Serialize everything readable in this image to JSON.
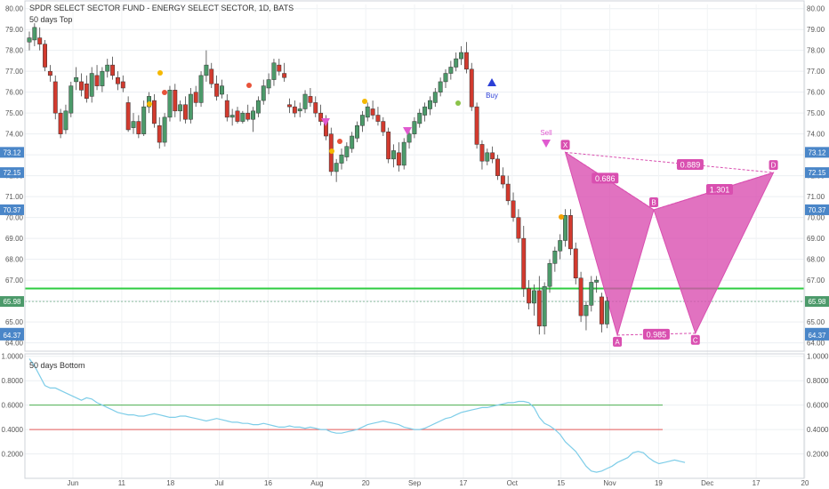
{
  "chart_data": [
    {
      "type": "candlestick",
      "title": "SPDR SELECT SECTOR FUND - ENERGY SELECT SECTOR, 1D, BATS",
      "subtitle": "50 days Top",
      "y_ticks": [
        "80.00",
        "79.00",
        "78.00",
        "77.00",
        "76.00",
        "75.00",
        "74.00",
        "73.00",
        "72.00",
        "71.00",
        "70.00",
        "69.00",
        "68.00",
        "67.00",
        "66.00",
        "65.00",
        "64.00"
      ],
      "ylim": [
        63.6,
        80.2
      ],
      "x_ticks": [
        "Jun",
        "11",
        "18",
        "Jul",
        "16",
        "Aug",
        "20",
        "Sep",
        "17",
        "Oct",
        "15",
        "Nov",
        "19",
        "Dec",
        "17",
        "20"
      ],
      "price_labels": [
        {
          "value": "73.12",
          "color": "#4a86c8"
        },
        {
          "value": "72.15",
          "color": "#4a86c8"
        },
        {
          "value": "70.37",
          "color": "#4a86c8"
        },
        {
          "value": "65.98",
          "color": "#4c9a6a"
        },
        {
          "value": "64.46",
          "color": "#4a86c8"
        },
        {
          "value": "64.37",
          "color": "#4a86c8"
        }
      ],
      "signals": {
        "buy": "Buy",
        "sell": "Sell"
      },
      "pattern": {
        "points": [
          {
            "label": "X",
            "date_index": 103,
            "price": 73.12
          },
          {
            "label": "A",
            "date_index": 113,
            "price": 64.37
          },
          {
            "label": "B",
            "date_index": 120,
            "price": 70.37
          },
          {
            "label": "C",
            "date_index": 128,
            "price": 64.46
          },
          {
            "label": "D",
            "date_index": 143,
            "price": 72.15
          }
        ],
        "ratios": [
          "0.686",
          "0.889",
          "1.301",
          "0.985"
        ],
        "color": "#d94fb0"
      },
      "support_level": 66.6,
      "candles": [
        {
          "o": 78.4,
          "h": 78.9,
          "l": 78.0,
          "c": 78.6
        },
        {
          "o": 78.5,
          "h": 79.3,
          "l": 78.2,
          "c": 79.1
        },
        {
          "o": 78.6,
          "h": 79.1,
          "l": 78.0,
          "c": 78.3
        },
        {
          "o": 78.3,
          "h": 78.5,
          "l": 77.0,
          "c": 77.2
        },
        {
          "o": 77.0,
          "h": 77.3,
          "l": 76.5,
          "c": 76.8
        },
        {
          "o": 76.5,
          "h": 76.8,
          "l": 74.7,
          "c": 75.0
        },
        {
          "o": 75.0,
          "h": 75.2,
          "l": 73.8,
          "c": 74.0
        },
        {
          "o": 74.2,
          "h": 75.4,
          "l": 74.0,
          "c": 75.1
        },
        {
          "o": 75.0,
          "h": 76.5,
          "l": 74.8,
          "c": 76.3
        },
        {
          "o": 76.5,
          "h": 77.2,
          "l": 76.1,
          "c": 76.7
        },
        {
          "o": 76.5,
          "h": 76.9,
          "l": 75.8,
          "c": 76.1
        },
        {
          "o": 76.4,
          "h": 76.8,
          "l": 75.5,
          "c": 75.7
        },
        {
          "o": 75.8,
          "h": 77.2,
          "l": 75.5,
          "c": 76.9
        },
        {
          "o": 76.8,
          "h": 77.3,
          "l": 76.1,
          "c": 76.3
        },
        {
          "o": 76.3,
          "h": 77.2,
          "l": 76.0,
          "c": 77.0
        },
        {
          "o": 77.0,
          "h": 77.6,
          "l": 76.7,
          "c": 77.3
        },
        {
          "o": 77.3,
          "h": 77.7,
          "l": 76.6,
          "c": 76.8
        },
        {
          "o": 76.7,
          "h": 77.0,
          "l": 76.1,
          "c": 76.4
        },
        {
          "o": 76.5,
          "h": 76.8,
          "l": 76.0,
          "c": 76.2
        },
        {
          "o": 75.5,
          "h": 75.8,
          "l": 74.1,
          "c": 74.2
        },
        {
          "o": 74.3,
          "h": 75.0,
          "l": 74.0,
          "c": 74.6
        },
        {
          "o": 74.6,
          "h": 74.9,
          "l": 73.8,
          "c": 74.0
        },
        {
          "o": 74.0,
          "h": 75.6,
          "l": 73.9,
          "c": 75.3
        },
        {
          "o": 75.3,
          "h": 76.0,
          "l": 75.0,
          "c": 75.8
        },
        {
          "o": 75.6,
          "h": 75.9,
          "l": 74.3,
          "c": 74.5
        },
        {
          "o": 74.4,
          "h": 74.8,
          "l": 73.3,
          "c": 73.6
        },
        {
          "o": 73.6,
          "h": 75.0,
          "l": 73.4,
          "c": 74.8
        },
        {
          "o": 74.8,
          "h": 76.3,
          "l": 74.6,
          "c": 76.1
        },
        {
          "o": 76.1,
          "h": 76.4,
          "l": 74.8,
          "c": 75.1
        },
        {
          "o": 75.1,
          "h": 75.6,
          "l": 74.6,
          "c": 75.4
        },
        {
          "o": 75.4,
          "h": 75.8,
          "l": 74.5,
          "c": 74.7
        },
        {
          "o": 74.7,
          "h": 76.2,
          "l": 74.5,
          "c": 75.9
        },
        {
          "o": 76.0,
          "h": 76.3,
          "l": 75.3,
          "c": 75.5
        },
        {
          "o": 75.5,
          "h": 77.0,
          "l": 75.3,
          "c": 76.8
        },
        {
          "o": 76.8,
          "h": 78.0,
          "l": 76.5,
          "c": 77.3
        },
        {
          "o": 77.1,
          "h": 77.4,
          "l": 76.2,
          "c": 76.4
        },
        {
          "o": 76.4,
          "h": 76.8,
          "l": 75.6,
          "c": 75.8
        },
        {
          "o": 75.9,
          "h": 76.6,
          "l": 75.7,
          "c": 76.3
        },
        {
          "o": 75.6,
          "h": 75.9,
          "l": 74.6,
          "c": 74.8
        },
        {
          "o": 74.8,
          "h": 75.2,
          "l": 74.4,
          "c": 74.9
        },
        {
          "o": 75.1,
          "h": 75.3,
          "l": 74.5,
          "c": 74.6
        },
        {
          "o": 74.6,
          "h": 75.1,
          "l": 74.5,
          "c": 75.0
        },
        {
          "o": 75.0,
          "h": 75.4,
          "l": 74.6,
          "c": 74.7
        },
        {
          "o": 74.7,
          "h": 75.3,
          "l": 74.1,
          "c": 75.1
        },
        {
          "o": 75.0,
          "h": 75.8,
          "l": 74.8,
          "c": 75.6
        },
        {
          "o": 75.6,
          "h": 76.6,
          "l": 75.4,
          "c": 76.3
        },
        {
          "o": 76.2,
          "h": 76.9,
          "l": 75.9,
          "c": 76.6
        },
        {
          "o": 76.6,
          "h": 77.6,
          "l": 76.3,
          "c": 77.4
        },
        {
          "o": 77.3,
          "h": 77.6,
          "l": 76.8,
          "c": 77.0
        },
        {
          "o": 76.9,
          "h": 77.4,
          "l": 76.5,
          "c": 76.7
        },
        {
          "o": 75.4,
          "h": 75.7,
          "l": 75.0,
          "c": 75.3
        },
        {
          "o": 75.3,
          "h": 75.6,
          "l": 74.8,
          "c": 75.0
        },
        {
          "o": 75.1,
          "h": 75.5,
          "l": 74.8,
          "c": 75.2
        },
        {
          "o": 75.2,
          "h": 76.1,
          "l": 75.0,
          "c": 75.9
        },
        {
          "o": 75.8,
          "h": 76.2,
          "l": 75.3,
          "c": 75.5
        },
        {
          "o": 75.5,
          "h": 75.8,
          "l": 74.8,
          "c": 75.0
        },
        {
          "o": 75.0,
          "h": 75.4,
          "l": 74.4,
          "c": 74.6
        },
        {
          "o": 74.6,
          "h": 74.9,
          "l": 73.7,
          "c": 73.9
        },
        {
          "o": 74.0,
          "h": 74.3,
          "l": 72.0,
          "c": 72.2
        },
        {
          "o": 72.2,
          "h": 72.8,
          "l": 71.7,
          "c": 72.6
        },
        {
          "o": 72.6,
          "h": 73.3,
          "l": 72.3,
          "c": 73.0
        },
        {
          "o": 72.9,
          "h": 73.6,
          "l": 72.7,
          "c": 73.4
        },
        {
          "o": 73.3,
          "h": 74.1,
          "l": 73.1,
          "c": 73.9
        },
        {
          "o": 73.8,
          "h": 74.6,
          "l": 73.6,
          "c": 74.4
        },
        {
          "o": 74.4,
          "h": 75.1,
          "l": 74.1,
          "c": 74.9
        },
        {
          "o": 74.8,
          "h": 75.5,
          "l": 74.6,
          "c": 75.3
        },
        {
          "o": 75.2,
          "h": 75.6,
          "l": 74.7,
          "c": 74.9
        },
        {
          "o": 74.9,
          "h": 75.3,
          "l": 74.4,
          "c": 74.6
        },
        {
          "o": 74.6,
          "h": 74.8,
          "l": 73.9,
          "c": 74.1
        },
        {
          "o": 74.1,
          "h": 74.3,
          "l": 72.6,
          "c": 72.8
        },
        {
          "o": 72.8,
          "h": 73.5,
          "l": 72.4,
          "c": 73.2
        },
        {
          "o": 73.1,
          "h": 73.6,
          "l": 72.2,
          "c": 72.5
        },
        {
          "o": 72.5,
          "h": 73.8,
          "l": 72.3,
          "c": 73.6
        },
        {
          "o": 73.6,
          "h": 74.3,
          "l": 73.3,
          "c": 74.0
        },
        {
          "o": 74.0,
          "h": 74.8,
          "l": 73.8,
          "c": 74.6
        },
        {
          "o": 74.5,
          "h": 75.2,
          "l": 74.3,
          "c": 75.0
        },
        {
          "o": 74.9,
          "h": 75.5,
          "l": 74.6,
          "c": 75.3
        },
        {
          "o": 75.2,
          "h": 75.8,
          "l": 74.9,
          "c": 75.6
        },
        {
          "o": 75.5,
          "h": 76.2,
          "l": 75.3,
          "c": 76.0
        },
        {
          "o": 76.0,
          "h": 76.7,
          "l": 75.8,
          "c": 76.5
        },
        {
          "o": 76.5,
          "h": 77.1,
          "l": 76.2,
          "c": 76.9
        },
        {
          "o": 76.9,
          "h": 77.5,
          "l": 76.6,
          "c": 77.2
        },
        {
          "o": 77.2,
          "h": 77.9,
          "l": 77.0,
          "c": 77.6
        },
        {
          "o": 77.6,
          "h": 78.2,
          "l": 77.3,
          "c": 77.9
        },
        {
          "o": 77.9,
          "h": 78.4,
          "l": 76.9,
          "c": 77.1
        },
        {
          "o": 77.1,
          "h": 77.4,
          "l": 75.1,
          "c": 75.3
        },
        {
          "o": 75.3,
          "h": 75.5,
          "l": 73.3,
          "c": 73.5
        },
        {
          "o": 73.5,
          "h": 73.7,
          "l": 72.3,
          "c": 72.7
        },
        {
          "o": 72.7,
          "h": 73.3,
          "l": 72.5,
          "c": 73.1
        },
        {
          "o": 73.1,
          "h": 73.4,
          "l": 72.6,
          "c": 72.8
        },
        {
          "o": 72.8,
          "h": 73.0,
          "l": 71.8,
          "c": 72.0
        },
        {
          "o": 72.0,
          "h": 72.4,
          "l": 71.4,
          "c": 71.6
        },
        {
          "o": 71.6,
          "h": 72.0,
          "l": 70.6,
          "c": 70.8
        },
        {
          "o": 70.8,
          "h": 71.2,
          "l": 69.8,
          "c": 70.0
        },
        {
          "o": 70.0,
          "h": 70.4,
          "l": 68.8,
          "c": 69.0
        },
        {
          "o": 69.0,
          "h": 69.6,
          "l": 66.2,
          "c": 66.6
        },
        {
          "o": 66.6,
          "h": 67.0,
          "l": 65.6,
          "c": 65.9
        },
        {
          "o": 65.9,
          "h": 66.8,
          "l": 65.3,
          "c": 66.5
        },
        {
          "o": 66.5,
          "h": 67.2,
          "l": 64.4,
          "c": 64.8
        },
        {
          "o": 64.8,
          "h": 66.9,
          "l": 64.4,
          "c": 66.7
        },
        {
          "o": 66.7,
          "h": 68.0,
          "l": 66.4,
          "c": 67.8
        },
        {
          "o": 67.8,
          "h": 68.6,
          "l": 67.4,
          "c": 68.4
        },
        {
          "o": 68.4,
          "h": 69.2,
          "l": 68.0,
          "c": 68.9
        },
        {
          "o": 68.9,
          "h": 70.4,
          "l": 68.6,
          "c": 70.1
        },
        {
          "o": 70.1,
          "h": 70.4,
          "l": 68.2,
          "c": 68.5
        },
        {
          "o": 68.5,
          "h": 68.8,
          "l": 66.8,
          "c": 67.1
        },
        {
          "o": 67.1,
          "h": 67.4,
          "l": 65.0,
          "c": 65.3
        },
        {
          "o": 65.3,
          "h": 66.0,
          "l": 64.6,
          "c": 65.8
        },
        {
          "o": 65.8,
          "h": 67.2,
          "l": 65.5,
          "c": 66.9
        },
        {
          "o": 66.9,
          "h": 67.2,
          "l": 66.4,
          "c": 67.0
        },
        {
          "o": 66.2,
          "h": 66.4,
          "l": 64.5,
          "c": 64.9
        },
        {
          "o": 64.9,
          "h": 66.2,
          "l": 64.7,
          "c": 66.0
        }
      ]
    },
    {
      "type": "line",
      "title": "50 days Bottom",
      "y_ticks": [
        "1.0000",
        "0.8000",
        "0.6000",
        "0.4000",
        "0.2000"
      ],
      "ylim": [
        0.0,
        1.02
      ],
      "levels": [
        {
          "value": 0.6,
          "color": "#4caf50"
        },
        {
          "value": 0.4,
          "color": "#e55a5a"
        }
      ],
      "series": [
        {
          "color": "#7ecde8",
          "values": [
            0.98,
            0.92,
            0.84,
            0.76,
            0.74,
            0.74,
            0.72,
            0.7,
            0.68,
            0.66,
            0.64,
            0.66,
            0.65,
            0.62,
            0.6,
            0.58,
            0.56,
            0.54,
            0.53,
            0.52,
            0.52,
            0.51,
            0.51,
            0.52,
            0.53,
            0.52,
            0.51,
            0.5,
            0.5,
            0.51,
            0.51,
            0.5,
            0.49,
            0.48,
            0.47,
            0.48,
            0.49,
            0.48,
            0.47,
            0.46,
            0.46,
            0.45,
            0.45,
            0.44,
            0.44,
            0.45,
            0.44,
            0.43,
            0.42,
            0.42,
            0.43,
            0.42,
            0.42,
            0.41,
            0.42,
            0.41,
            0.4,
            0.4,
            0.38,
            0.37,
            0.37,
            0.38,
            0.39,
            0.4,
            0.42,
            0.44,
            0.45,
            0.46,
            0.47,
            0.46,
            0.45,
            0.44,
            0.42,
            0.41,
            0.4,
            0.4,
            0.41,
            0.43,
            0.45,
            0.47,
            0.49,
            0.5,
            0.52,
            0.54,
            0.55,
            0.56,
            0.57,
            0.58,
            0.58,
            0.59,
            0.6,
            0.61,
            0.62,
            0.62,
            0.63,
            0.63,
            0.62,
            0.58,
            0.5,
            0.45,
            0.43,
            0.4,
            0.36,
            0.3,
            0.26,
            0.22,
            0.16,
            0.1,
            0.06,
            0.05,
            0.06,
            0.08,
            0.1,
            0.13,
            0.15,
            0.17,
            0.21,
            0.22,
            0.21,
            0.17,
            0.14,
            0.12,
            0.13,
            0.14,
            0.15,
            0.14,
            0.13
          ]
        }
      ]
    }
  ]
}
